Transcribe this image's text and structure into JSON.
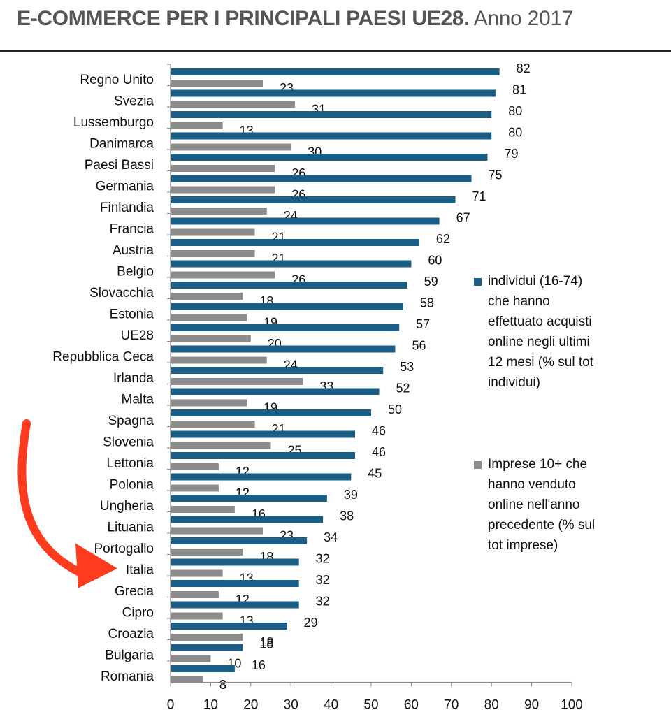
{
  "header": {
    "title_bold": "E-COMMERCE PER I PRINCIPALI PAESI UE28.",
    "title_rest": "Anno 2017"
  },
  "legend": {
    "series1": "individui (16-74) che hanno effettuato acquisti online negli ultimi 12 mesi (% sul tot individui)",
    "series2": "Imprese 10+ che hanno venduto online nell'anno precedente (% sul tot imprese)"
  },
  "chart_data": {
    "type": "bar",
    "orientation": "horizontal",
    "categories": [
      "Regno Unito",
      "Svezia",
      "Lussemburgo",
      "Danimarca",
      "Paesi Bassi",
      "Germania",
      "Finlandia",
      "Francia",
      "Austria",
      "Belgio",
      "Slovacchia",
      "Estonia",
      "UE28",
      "Repubblica Ceca",
      "Irlanda",
      "Malta",
      "Spagna",
      "Slovenia",
      "Lettonia",
      "Polonia",
      "Ungheria",
      "Lituania",
      "Portogallo",
      "Italia",
      "Grecia",
      "Cipro",
      "Croazia",
      "Bulgaria",
      "Romania"
    ],
    "series": [
      {
        "name": "individui (16-74) che hanno effettuato acquisti online negli ultimi 12 mesi (% sul tot individui)",
        "color": "#1a5e86",
        "values": [
          82,
          81,
          80,
          80,
          79,
          75,
          71,
          67,
          62,
          60,
          59,
          58,
          57,
          56,
          53,
          52,
          50,
          46,
          46,
          45,
          39,
          38,
          34,
          32,
          32,
          32,
          29,
          18,
          16
        ]
      },
      {
        "name": "Imprese 10+ che hanno venduto online nell'anno precedente (% sul tot imprese)",
        "color": "#8c8c8c",
        "values": [
          23,
          31,
          13,
          30,
          26,
          26,
          24,
          21,
          21,
          26,
          18,
          19,
          20,
          24,
          33,
          19,
          21,
          25,
          12,
          12,
          16,
          23,
          18,
          13,
          12,
          13,
          18,
          10,
          8
        ]
      }
    ],
    "xlim": [
      0,
      100
    ],
    "xticks": [
      0,
      10,
      20,
      30,
      40,
      50,
      60,
      70,
      80,
      90,
      100
    ],
    "grid": false,
    "legend_position": "right",
    "annotation": "red-arrow pointing to Italia",
    "annotation_color": "#ff3b1f"
  }
}
